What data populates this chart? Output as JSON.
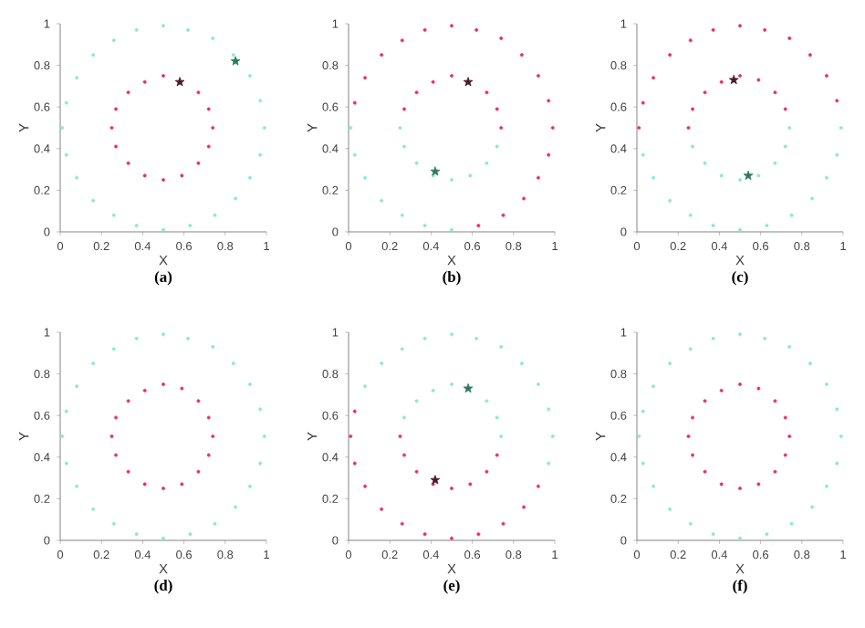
{
  "chart_data": [
    {
      "type": "scatter",
      "title": "(a)",
      "xlabel": "X",
      "ylabel": "Y",
      "xlim": [
        0,
        1
      ],
      "ylim": [
        0,
        1
      ],
      "xticks": [
        0,
        0.2,
        0.4,
        0.6,
        0.8,
        1
      ],
      "yticks": [
        0,
        0.2,
        0.4,
        0.6,
        0.8,
        1
      ],
      "series": [
        {
          "color": "#8ae8d4",
          "marker": "circle",
          "x": [
            0.99,
            0.97,
            0.92,
            0.84,
            0.74,
            0.62,
            0.5,
            0.37,
            0.26,
            0.16,
            0.08,
            0.03,
            0.01,
            0.03,
            0.08,
            0.16,
            0.26,
            0.37,
            0.5,
            0.63,
            0.75,
            0.85,
            0.92,
            0.97
          ],
          "values": [
            0.5,
            0.63,
            0.75,
            0.85,
            0.93,
            0.97,
            0.99,
            0.97,
            0.92,
            0.85,
            0.74,
            0.62,
            0.5,
            0.37,
            0.26,
            0.15,
            0.08,
            0.03,
            0.01,
            0.03,
            0.08,
            0.16,
            0.26,
            0.37
          ]
        },
        {
          "color": "#e8306a",
          "marker": "circle",
          "x": [
            0.74,
            0.72,
            0.67,
            0.59,
            0.5,
            0.41,
            0.33,
            0.27,
            0.25,
            0.27,
            0.33,
            0.41,
            0.5,
            0.59,
            0.67,
            0.72
          ],
          "values": [
            0.5,
            0.59,
            0.67,
            null,
            0.75,
            0.72,
            0.67,
            0.59,
            0.5,
            0.41,
            0.33,
            0.27,
            0.25,
            0.27,
            0.33,
            0.41
          ]
        },
        {
          "color": "#4a1a2a",
          "marker": "star",
          "x": [
            0.58
          ],
          "values": [
            0.72
          ]
        },
        {
          "color": "#2d7a5a",
          "marker": "star",
          "x": [
            0.85
          ],
          "values": [
            0.82
          ]
        }
      ]
    },
    {
      "type": "scatter",
      "title": "(b)",
      "xlabel": "X",
      "ylabel": "Y",
      "xlim": [
        0,
        1
      ],
      "ylim": [
        0,
        1
      ],
      "xticks": [
        0,
        0.2,
        0.4,
        0.6,
        0.8,
        1
      ],
      "yticks": [
        0,
        0.2,
        0.4,
        0.6,
        0.8,
        1
      ],
      "series": [
        {
          "color": "#8ae8d4",
          "marker": "circle",
          "x": [
            0.01,
            0.03,
            0.08,
            0.16,
            0.26,
            0.37,
            0.5,
            0.25,
            0.27,
            0.33,
            0.41,
            0.5,
            0.59,
            0.67,
            0.72
          ],
          "values": [
            0.5,
            0.37,
            0.26,
            0.15,
            0.08,
            0.03,
            0.01,
            0.5,
            0.41,
            0.33,
            0.27,
            0.25,
            0.27,
            0.33,
            0.41
          ]
        },
        {
          "color": "#e8306a",
          "marker": "circle",
          "x": [
            0.63,
            0.75,
            0.85,
            0.92,
            0.97,
            0.99,
            0.97,
            0.92,
            0.84,
            0.74,
            0.62,
            0.5,
            0.37,
            0.26,
            0.16,
            0.08,
            0.03,
            0.74,
            0.72,
            0.67,
            0.59,
            0.5,
            0.41,
            0.33,
            0.27
          ],
          "values": [
            0.03,
            0.08,
            0.16,
            0.26,
            0.37,
            0.5,
            0.63,
            0.75,
            0.85,
            0.93,
            0.97,
            0.99,
            0.97,
            0.92,
            0.85,
            0.74,
            0.62,
            0.5,
            0.59,
            0.67,
            null,
            0.75,
            0.72,
            0.67,
            0.59
          ]
        },
        {
          "color": "#4a1a2a",
          "marker": "star",
          "x": [
            0.58
          ],
          "values": [
            0.72
          ]
        },
        {
          "color": "#2d7a5a",
          "marker": "star",
          "x": [
            0.42
          ],
          "values": [
            0.29
          ]
        }
      ]
    },
    {
      "type": "scatter",
      "title": "(c)",
      "xlabel": "X",
      "ylabel": "Y",
      "xlim": [
        0,
        1
      ],
      "ylim": [
        0,
        1
      ],
      "xticks": [
        0,
        0.2,
        0.4,
        0.6,
        0.8,
        1
      ],
      "yticks": [
        0,
        0.2,
        0.4,
        0.6,
        0.8,
        1
      ],
      "series": [
        {
          "color": "#8ae8d4",
          "marker": "circle",
          "x": [
            0.03,
            0.08,
            0.16,
            0.26,
            0.37,
            0.5,
            0.63,
            0.75,
            0.85,
            0.92,
            0.97,
            0.99,
            0.27,
            0.33,
            0.41,
            0.5,
            0.59,
            0.67,
            0.72,
            0.74
          ],
          "values": [
            0.37,
            0.26,
            0.15,
            0.08,
            0.03,
            0.01,
            0.03,
            0.08,
            0.16,
            0.26,
            0.37,
            0.5,
            0.41,
            0.33,
            0.27,
            0.25,
            0.27,
            0.33,
            0.41,
            0.5
          ]
        },
        {
          "color": "#e8306a",
          "marker": "circle",
          "x": [
            0.97,
            0.92,
            0.84,
            0.74,
            0.62,
            0.5,
            0.37,
            0.26,
            0.16,
            0.08,
            0.03,
            0.01,
            0.72,
            0.67,
            0.59,
            0.5,
            0.41,
            0.33,
            0.27,
            0.25
          ],
          "values": [
            0.63,
            0.75,
            0.85,
            0.93,
            0.97,
            0.99,
            0.97,
            0.92,
            0.85,
            0.74,
            0.62,
            0.5,
            0.59,
            0.67,
            0.73,
            0.75,
            0.72,
            0.67,
            0.59,
            0.5
          ]
        },
        {
          "color": "#4a1a2a",
          "marker": "star",
          "x": [
            0.47
          ],
          "values": [
            0.73
          ]
        },
        {
          "color": "#2d7a5a",
          "marker": "star",
          "x": [
            0.54
          ],
          "values": [
            0.27
          ]
        }
      ]
    },
    {
      "type": "scatter",
      "title": "(d)",
      "xlabel": "X",
      "ylabel": "Y",
      "xlim": [
        0,
        1
      ],
      "ylim": [
        0,
        1
      ],
      "xticks": [
        0,
        0.2,
        0.4,
        0.6,
        0.8,
        1
      ],
      "yticks": [
        0,
        0.2,
        0.4,
        0.6,
        0.8,
        1
      ],
      "series": [
        {
          "color": "#8ae8d4",
          "marker": "circle",
          "x": [
            0.99,
            0.97,
            0.92,
            0.84,
            0.74,
            0.62,
            0.5,
            0.37,
            0.26,
            0.16,
            0.08,
            0.03,
            0.01,
            0.03,
            0.08,
            0.16,
            0.26,
            0.37,
            0.5,
            0.63,
            0.75,
            0.85,
            0.92,
            0.97
          ],
          "values": [
            0.5,
            0.63,
            0.75,
            0.85,
            0.93,
            0.97,
            0.99,
            0.97,
            0.92,
            0.85,
            0.74,
            0.62,
            0.5,
            0.37,
            0.26,
            0.15,
            0.08,
            0.03,
            0.01,
            0.03,
            0.08,
            0.16,
            0.26,
            0.37
          ]
        },
        {
          "color": "#e8306a",
          "marker": "circle",
          "x": [
            0.74,
            0.72,
            0.67,
            0.59,
            0.5,
            0.41,
            0.33,
            0.27,
            0.25,
            0.27,
            0.33,
            0.41,
            0.5,
            0.59,
            0.67,
            0.72
          ],
          "values": [
            0.5,
            0.59,
            0.67,
            0.73,
            0.75,
            0.72,
            0.67,
            0.59,
            0.5,
            0.41,
            0.33,
            0.27,
            0.25,
            0.27,
            0.33,
            0.41
          ]
        }
      ]
    },
    {
      "type": "scatter",
      "title": "(e)",
      "xlabel": "X",
      "ylabel": "Y",
      "xlim": [
        0,
        1
      ],
      "ylim": [
        0,
        1
      ],
      "xticks": [
        0,
        0.2,
        0.4,
        0.6,
        0.8,
        1
      ],
      "yticks": [
        0,
        0.2,
        0.4,
        0.6,
        0.8,
        1
      ],
      "series": [
        {
          "color": "#8ae8d4",
          "marker": "circle",
          "x": [
            0.97,
            0.99,
            0.97,
            0.92,
            0.84,
            0.74,
            0.62,
            0.5,
            0.37,
            0.26,
            0.16,
            0.08,
            0.74,
            0.72,
            0.67,
            0.59,
            0.5,
            0.41,
            0.33,
            0.27
          ],
          "values": [
            0.37,
            0.5,
            0.63,
            0.75,
            0.85,
            0.93,
            0.97,
            0.99,
            0.97,
            0.92,
            0.85,
            0.74,
            0.5,
            0.59,
            0.67,
            null,
            0.75,
            0.72,
            0.67,
            0.59
          ]
        },
        {
          "color": "#e8306a",
          "marker": "circle",
          "x": [
            0.03,
            0.01,
            0.03,
            0.08,
            0.16,
            0.26,
            0.37,
            0.5,
            0.63,
            0.75,
            0.85,
            0.92,
            0.25,
            0.27,
            0.33,
            0.41,
            0.5,
            0.59,
            0.67,
            0.72
          ],
          "values": [
            0.62,
            0.5,
            0.37,
            0.26,
            0.15,
            0.08,
            0.03,
            0.01,
            0.03,
            0.08,
            0.16,
            0.26,
            0.5,
            0.41,
            0.33,
            0.27,
            0.25,
            0.27,
            0.33,
            0.41
          ]
        },
        {
          "color": "#2d7a5a",
          "marker": "star",
          "x": [
            0.58
          ],
          "values": [
            0.73
          ]
        },
        {
          "color": "#4a1a2a",
          "marker": "star",
          "x": [
            0.42
          ],
          "values": [
            0.29
          ]
        }
      ]
    },
    {
      "type": "scatter",
      "title": "(f)",
      "xlabel": "X",
      "ylabel": "Y",
      "xlim": [
        0,
        1
      ],
      "ylim": [
        0,
        1
      ],
      "xticks": [
        0,
        0.2,
        0.4,
        0.6,
        0.8,
        1
      ],
      "yticks": [
        0,
        0.2,
        0.4,
        0.6,
        0.8,
        1
      ],
      "series": [
        {
          "color": "#8ae8d4",
          "marker": "circle",
          "x": [
            0.99,
            0.97,
            0.92,
            0.84,
            0.74,
            0.62,
            0.5,
            0.37,
            0.26,
            0.16,
            0.08,
            0.03,
            0.01,
            0.03,
            0.08,
            0.16,
            0.26,
            0.37,
            0.5,
            0.63,
            0.75,
            0.85,
            0.92,
            0.97
          ],
          "values": [
            0.5,
            0.63,
            0.75,
            0.85,
            0.93,
            0.97,
            0.99,
            0.97,
            0.92,
            0.85,
            0.74,
            0.62,
            0.5,
            0.37,
            0.26,
            0.15,
            0.08,
            0.03,
            0.01,
            0.03,
            0.08,
            0.16,
            0.26,
            0.37
          ]
        },
        {
          "color": "#e8306a",
          "marker": "circle",
          "x": [
            0.74,
            0.72,
            0.67,
            0.59,
            0.5,
            0.41,
            0.33,
            0.27,
            0.25,
            0.27,
            0.33,
            0.41,
            0.5,
            0.59,
            0.67,
            0.72
          ],
          "values": [
            0.5,
            0.59,
            0.67,
            0.73,
            0.75,
            0.72,
            0.67,
            0.59,
            0.5,
            0.41,
            0.33,
            0.27,
            0.25,
            0.27,
            0.33,
            0.41
          ]
        }
      ]
    }
  ]
}
